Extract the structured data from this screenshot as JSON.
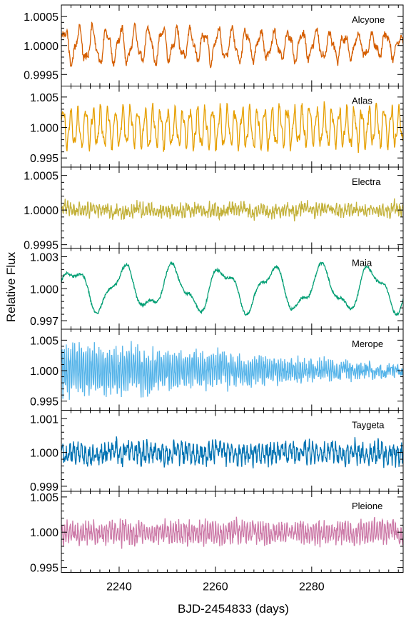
{
  "chart_data": {
    "type": "line",
    "xlabel": "BJD-2454833 (days)",
    "ylabel": "Relative Flux",
    "xlim": [
      2228,
      2299
    ],
    "x_ticks": [
      2240,
      2260,
      2280
    ],
    "x_tick_labels": [
      "2240",
      "2260",
      "2280"
    ],
    "panels": [
      {
        "name": "Alcyone",
        "color": "#d55e00",
        "ylim": [
          0.9993,
          1.0007
        ],
        "y_ticks": [
          0.9995,
          1.0,
          1.0005
        ],
        "y_tick_labels": [
          "0.9995",
          "1.0000",
          "1.0005"
        ],
        "signal": {
          "baseline": 1.0,
          "amplitude": 0.00028,
          "period_days": 2.9,
          "noise": 6e-05,
          "amp_trend": -0.4
        }
      },
      {
        "name": "Atlas",
        "color": "#e69f00",
        "ylim": [
          0.9935,
          1.0068
        ],
        "y_ticks": [
          0.995,
          1.0,
          1.005
        ],
        "y_tick_labels": [
          "0.995",
          "1.000",
          "1.005"
        ],
        "signal": {
          "baseline": 1.0,
          "amplitude": 0.0028,
          "period_days": 1.55,
          "noise": 0.0006,
          "amp_trend": 0.0
        }
      },
      {
        "name": "Electra",
        "color": "#c3b13a",
        "ylim": [
          0.99945,
          1.00062
        ],
        "y_ticks": [
          0.9995,
          1.0,
          1.0005
        ],
        "y_tick_labels": [
          "0.9995",
          "1.0000",
          "1.0005"
        ],
        "signal": {
          "baseline": 1.0,
          "amplitude": 5e-05,
          "period_days": 0.6,
          "noise": 6e-05,
          "amp_trend": 0.0
        }
      },
      {
        "name": "Maia",
        "color": "#009e73",
        "ylim": [
          0.9962,
          1.0038
        ],
        "y_ticks": [
          0.997,
          1.0,
          1.003
        ],
        "y_tick_labels": [
          "0.997",
          "1.000",
          "1.003"
        ],
        "signal": {
          "baseline": 1.0,
          "amplitude": 0.0018,
          "period_days": 10.3,
          "noise": 0.00012,
          "amp_trend": 0.0
        }
      },
      {
        "name": "Merope",
        "color": "#56b4e9",
        "ylim": [
          0.9935,
          1.0068
        ],
        "y_ticks": [
          0.995,
          1.0,
          1.005
        ],
        "y_tick_labels": [
          "0.995",
          "1.000",
          "1.005"
        ],
        "signal": {
          "baseline": 1.0,
          "amplitude": 0.0035,
          "period_days": 0.45,
          "noise": 0.0008,
          "amp_trend": -0.88
        }
      },
      {
        "name": "Taygeta",
        "color": "#0072b2",
        "ylim": [
          0.99885,
          1.00125
        ],
        "y_ticks": [
          0.999,
          1.0,
          1.001
        ],
        "y_tick_labels": [
          "0.999",
          "1.000",
          "1.001"
        ],
        "signal": {
          "baseline": 1.0,
          "amplitude": 0.0002,
          "period_days": 0.8,
          "noise": 0.00018,
          "amp_trend": 0.0
        }
      },
      {
        "name": "Pleione",
        "color": "#cc79a7",
        "ylim": [
          0.9943,
          1.0058
        ],
        "y_ticks": [
          0.995,
          1.0,
          1.005
        ],
        "y_tick_labels": [
          "0.995",
          "1.000",
          "1.005"
        ],
        "signal": {
          "baseline": 1.0,
          "amplitude": 0.0011,
          "period_days": 0.55,
          "noise": 0.0007,
          "amp_trend": 0.1
        }
      }
    ]
  }
}
